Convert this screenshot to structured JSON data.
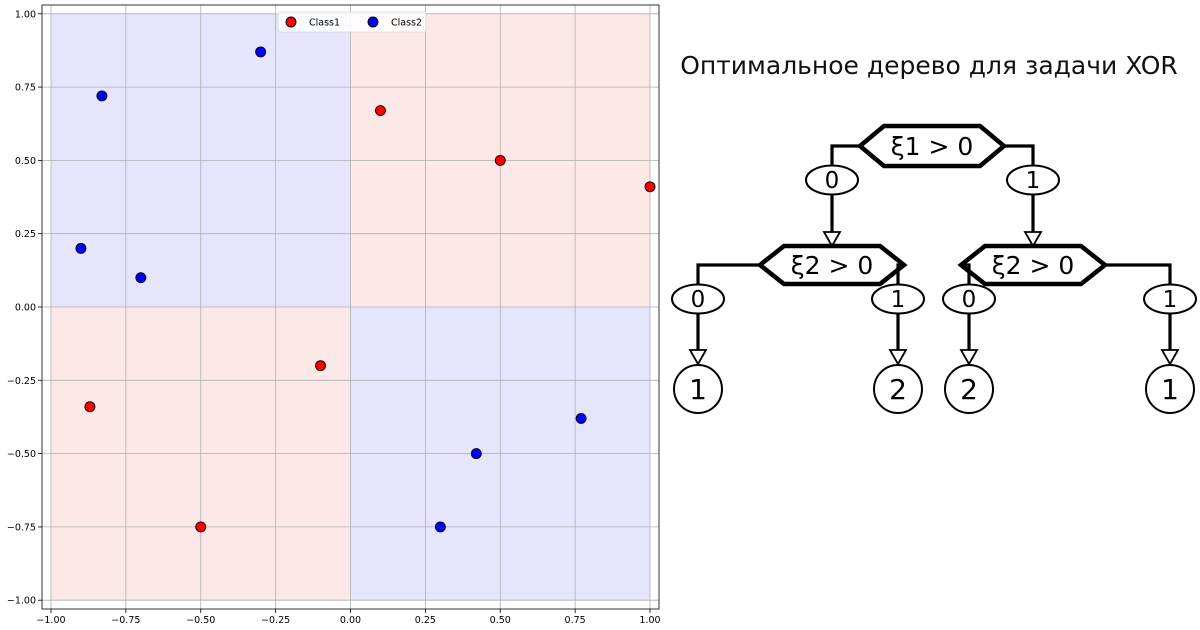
{
  "chart_data": [
    {
      "type": "scatter",
      "title": "",
      "xlabel": "",
      "ylabel": "",
      "xlim": [
        -1.03,
        1.03
      ],
      "ylim": [
        -1.03,
        1.03
      ],
      "grid": true,
      "legend_position": "top-center",
      "x_ticks": [
        "−1.00",
        "−0.75",
        "−0.50",
        "−0.25",
        "0.00",
        "0.25",
        "0.50",
        "0.75",
        "1.00"
      ],
      "y_ticks": [
        "1.00",
        "0.75",
        "0.50",
        "0.25",
        "0.00",
        "−0.25",
        "−0.50",
        "−0.75",
        "−1.00"
      ],
      "regions": [
        {
          "x": [
            -1,
            0
          ],
          "y": [
            0,
            1
          ],
          "color": "#e5e6fd"
        },
        {
          "x": [
            0,
            1
          ],
          "y": [
            0,
            1
          ],
          "color": "#fde8e8"
        },
        {
          "x": [
            -1,
            0
          ],
          "y": [
            -1,
            0
          ],
          "color": "#fde8e8"
        },
        {
          "x": [
            0,
            1
          ],
          "y": [
            -1,
            0
          ],
          "color": "#e5e6fd"
        }
      ],
      "series": [
        {
          "name": "Class1",
          "color": "#ff0000",
          "points": [
            [
              0.1,
              0.67
            ],
            [
              0.5,
              0.5
            ],
            [
              1.0,
              0.41
            ],
            [
              -0.1,
              -0.2
            ],
            [
              -0.87,
              -0.34
            ],
            [
              -0.5,
              -0.75
            ]
          ]
        },
        {
          "name": "Class2",
          "color": "#0000ff",
          "points": [
            [
              -0.3,
              0.87
            ],
            [
              -0.83,
              0.72
            ],
            [
              -0.9,
              0.2
            ],
            [
              -0.7,
              0.1
            ],
            [
              0.77,
              -0.38
            ],
            [
              0.42,
              -0.5
            ],
            [
              0.3,
              -0.75
            ]
          ]
        }
      ]
    },
    {
      "type": "diagram",
      "title": "Оптимальное дерево для задачи XOR",
      "root": {
        "condition": "ξ1 > 0",
        "branches": [
          {
            "edge": "0",
            "condition": "ξ2 > 0",
            "branches": [
              {
                "edge": "0",
                "leaf": "1"
              },
              {
                "edge": "1",
                "leaf": "2"
              }
            ]
          },
          {
            "edge": "1",
            "condition": "ξ2 > 0",
            "branches": [
              {
                "edge": "0",
                "leaf": "2"
              },
              {
                "edge": "1",
                "leaf": "1"
              }
            ]
          }
        ]
      }
    }
  ]
}
